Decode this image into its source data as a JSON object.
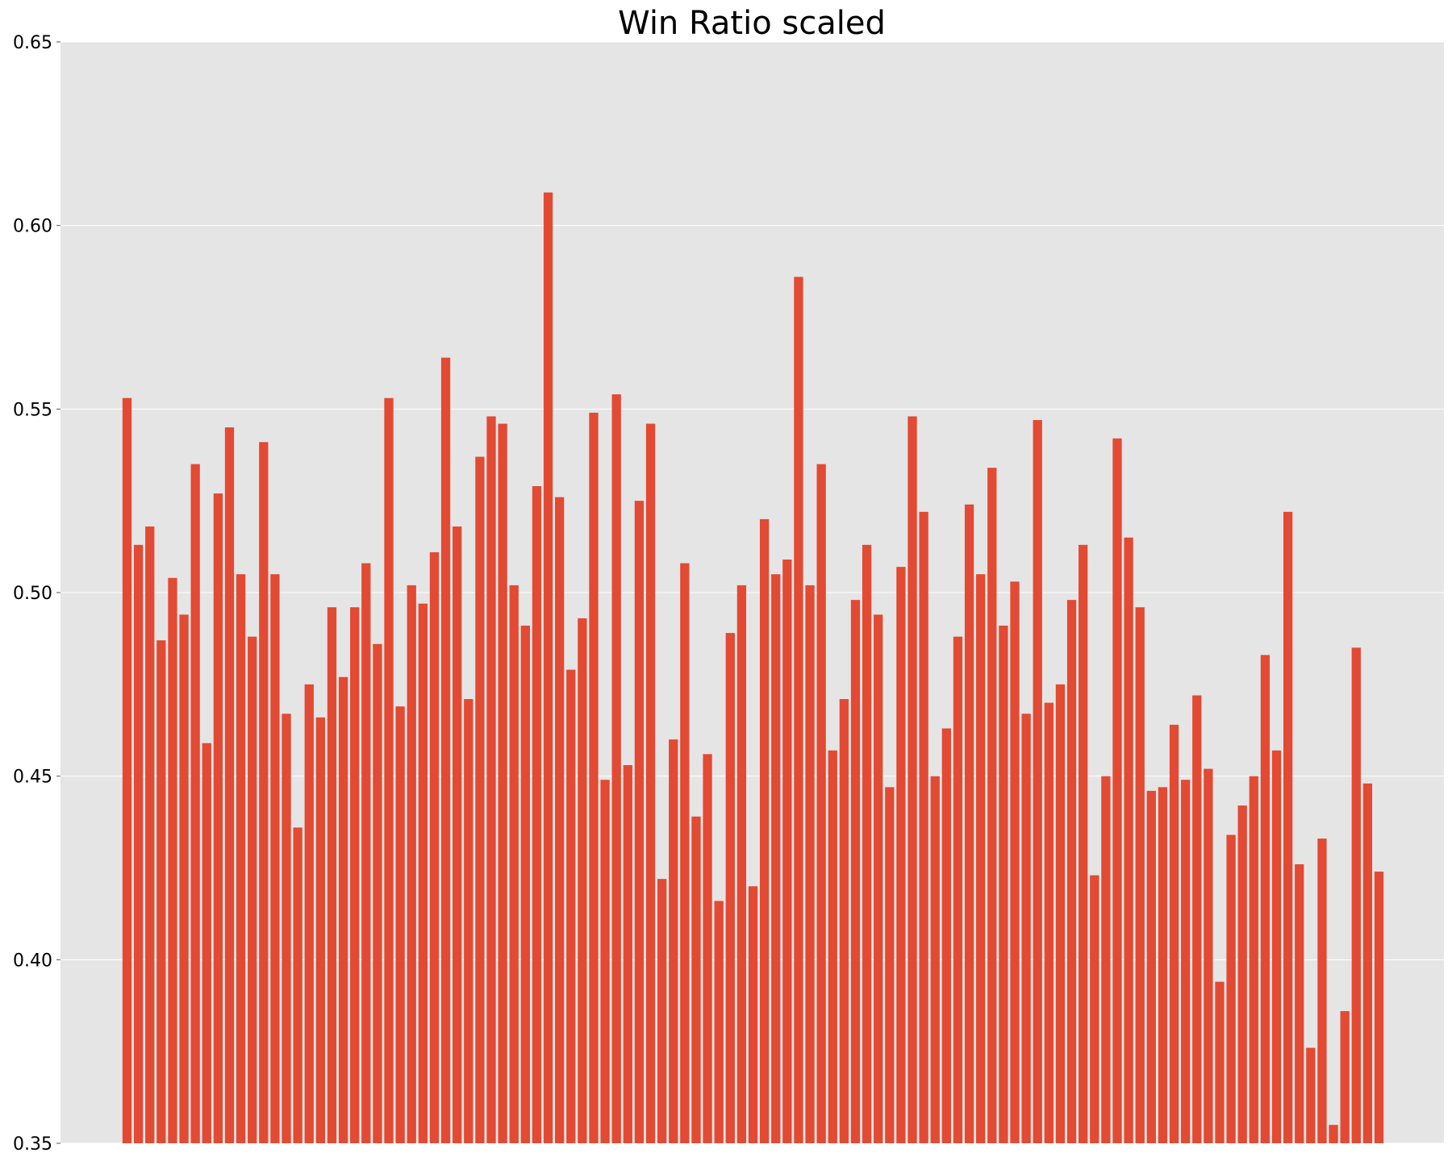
{
  "chart_data": {
    "type": "bar",
    "title": "Win Ratio scaled",
    "xlabel": "",
    "ylabel": "",
    "ylim": [
      0.35,
      0.65
    ],
    "yticks": [
      "0.35",
      "0.40",
      "0.45",
      "0.50",
      "0.55",
      "0.60",
      "0.65"
    ],
    "grid": true,
    "colors": {
      "bar": "#e24a33",
      "plot_bg": "#e5e5e5",
      "grid": "#ffffff"
    },
    "values": [
      0.553,
      0.513,
      0.518,
      0.487,
      0.504,
      0.494,
      0.535,
      0.459,
      0.527,
      0.545,
      0.505,
      0.488,
      0.541,
      0.505,
      0.467,
      0.436,
      0.475,
      0.466,
      0.496,
      0.477,
      0.496,
      0.508,
      0.486,
      0.553,
      0.469,
      0.502,
      0.497,
      0.511,
      0.564,
      0.518,
      0.471,
      0.537,
      0.548,
      0.546,
      0.502,
      0.491,
      0.529,
      0.609,
      0.526,
      0.479,
      0.493,
      0.549,
      0.449,
      0.554,
      0.453,
      0.525,
      0.546,
      0.422,
      0.46,
      0.508,
      0.439,
      0.456,
      0.416,
      0.489,
      0.502,
      0.42,
      0.52,
      0.505,
      0.509,
      0.586,
      0.502,
      0.535,
      0.457,
      0.471,
      0.498,
      0.513,
      0.494,
      0.447,
      0.507,
      0.548,
      0.522,
      0.45,
      0.463,
      0.488,
      0.524,
      0.505,
      0.534,
      0.491,
      0.503,
      0.467,
      0.547,
      0.47,
      0.475,
      0.498,
      0.513,
      0.423,
      0.45,
      0.542,
      0.515,
      0.496,
      0.446,
      0.447,
      0.464,
      0.449,
      0.472,
      0.452,
      0.394,
      0.434,
      0.442,
      0.45,
      0.483,
      0.457,
      0.522,
      0.426,
      0.376,
      0.433,
      0.355,
      0.386,
      0.485,
      0.448,
      0.424
    ]
  }
}
